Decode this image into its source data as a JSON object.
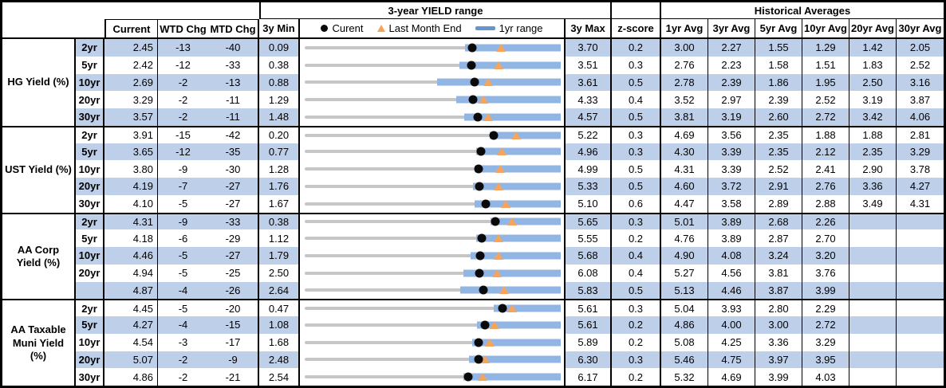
{
  "colors": {
    "stripe": "#BDCFE9",
    "bar": "#92B6E4",
    "dash": "#6595CE",
    "tri": "#F6A35C",
    "track": "#C6C6C6",
    "dot": "#0A0A0A"
  },
  "chart_data": {
    "type": "table",
    "title": "3-year YIELD range",
    "hist_title": "Historical Averages",
    "legend": [
      {
        "icon": "black-dot",
        "label": "Curent"
      },
      {
        "icon": "orange-triangle",
        "label": "Last Month End"
      },
      {
        "icon": "blue-dash",
        "label": "1yr range"
      }
    ],
    "headers": {
      "current": "Current",
      "wtd": "WTD Chg",
      "mtd": "MTD Chg",
      "min": "3y Min",
      "max": "3y Max",
      "z": "z-score",
      "avgs": [
        "1yr Avg",
        "3yr Avg",
        "5yr Avg",
        "10yr Avg",
        "20yr Avg",
        "30yr Avg"
      ]
    },
    "range_chart_note": "bar_lo/dot/tri are fractions of the 3yMin-3yMax track; 1yr-range bar runs from bar_lo to right edge (3y Max)",
    "groups": [
      {
        "label": "HG Yield (%)",
        "rows": [
          {
            "tenor": "2yr",
            "current": "2.45",
            "wtd": "-13",
            "mtd": "-40",
            "min": "0.09",
            "max": "3.70",
            "z": "0.2",
            "avgs": [
              "3.00",
              "2.27",
              "1.55",
              "1.29",
              "1.42",
              "2.05"
            ],
            "range_chart": {
              "bar_lo": 0.627,
              "dot": 0.654,
              "tri": 0.767
            }
          },
          {
            "tenor": "5yr",
            "current": "2.42",
            "wtd": "-12",
            "mtd": "-33",
            "min": "0.38",
            "max": "3.51",
            "z": "0.3",
            "avgs": [
              "2.76",
              "2.23",
              "1.58",
              "1.51",
              "1.83",
              "2.52"
            ],
            "range_chart": {
              "bar_lo": 0.603,
              "dot": 0.652,
              "tri": 0.758
            }
          },
          {
            "tenor": "10yr",
            "current": "2.69",
            "wtd": "-2",
            "mtd": "-13",
            "min": "0.88",
            "max": "3.61",
            "z": "0.5",
            "avgs": [
              "2.78",
              "2.39",
              "1.86",
              "1.95",
              "2.50",
              "3.16"
            ],
            "range_chart": {
              "bar_lo": 0.516,
              "dot": 0.663,
              "tri": 0.716
            }
          },
          {
            "tenor": "20yr",
            "current": "3.29",
            "wtd": "-2",
            "mtd": "-11",
            "min": "1.29",
            "max": "4.33",
            "z": "0.4",
            "avgs": [
              "3.52",
              "2.97",
              "2.39",
              "2.52",
              "3.19",
              "3.87"
            ],
            "range_chart": {
              "bar_lo": 0.591,
              "dot": 0.658,
              "tri": 0.699
            }
          },
          {
            "tenor": "30yr",
            "current": "3.57",
            "wtd": "-2",
            "mtd": "-11",
            "min": "1.48",
            "max": "4.57",
            "z": "0.5",
            "avgs": [
              "3.81",
              "3.19",
              "2.60",
              "2.72",
              "3.42",
              "4.06"
            ],
            "range_chart": {
              "bar_lo": 0.624,
              "dot": 0.676,
              "tri": 0.716
            }
          }
        ]
      },
      {
        "label": "UST Yield (%)",
        "rows": [
          {
            "tenor": "2yr",
            "current": "3.91",
            "wtd": "-15",
            "mtd": "-42",
            "min": "0.20",
            "max": "5.22",
            "z": "0.3",
            "avgs": [
              "4.69",
              "3.56",
              "2.35",
              "1.88",
              "1.88",
              "2.81"
            ],
            "range_chart": {
              "bar_lo": 0.722,
              "dot": 0.739,
              "tri": 0.826
            }
          },
          {
            "tenor": "5yr",
            "current": "3.65",
            "wtd": "-12",
            "mtd": "-35",
            "min": "0.77",
            "max": "4.96",
            "z": "0.3",
            "avgs": [
              "4.30",
              "3.39",
              "2.35",
              "2.12",
              "2.35",
              "3.29"
            ],
            "range_chart": {
              "bar_lo": 0.67,
              "dot": 0.687,
              "tri": 0.771
            }
          },
          {
            "tenor": "10yr",
            "current": "3.80",
            "wtd": "-9",
            "mtd": "-30",
            "min": "1.28",
            "max": "4.99",
            "z": "0.5",
            "avgs": [
              "4.31",
              "3.39",
              "2.52",
              "2.41",
              "2.90",
              "3.78"
            ],
            "range_chart": {
              "bar_lo": 0.665,
              "dot": 0.679,
              "tri": 0.763
            }
          },
          {
            "tenor": "20yr",
            "current": "4.19",
            "wtd": "-7",
            "mtd": "-27",
            "min": "1.76",
            "max": "5.33",
            "z": "0.5",
            "avgs": [
              "4.60",
              "3.72",
              "2.91",
              "2.76",
              "3.36",
              "4.27"
            ],
            "range_chart": {
              "bar_lo": 0.657,
              "dot": 0.681,
              "tri": 0.756
            }
          },
          {
            "tenor": "30yr",
            "current": "4.10",
            "wtd": "-5",
            "mtd": "-27",
            "min": "1.67",
            "max": "5.10",
            "z": "0.6",
            "avgs": [
              "4.47",
              "3.58",
              "2.89",
              "2.88",
              "3.49",
              "4.31"
            ],
            "range_chart": {
              "bar_lo": 0.662,
              "dot": 0.708,
              "tri": 0.786
            }
          }
        ]
      },
      {
        "label": "AA Corp Yield (%)",
        "rows": [
          {
            "tenor": "2yr",
            "current": "4.31",
            "wtd": "-9",
            "mtd": "-33",
            "min": "0.38",
            "max": "5.65",
            "z": "0.3",
            "avgs": [
              "5.01",
              "3.89",
              "2.68",
              "2.26",
              "",
              ""
            ],
            "range_chart": {
              "bar_lo": 0.725,
              "dot": 0.746,
              "tri": 0.81
            }
          },
          {
            "tenor": "5yr",
            "current": "4.18",
            "wtd": "-6",
            "mtd": "-29",
            "min": "1.12",
            "max": "5.55",
            "z": "0.2",
            "avgs": [
              "4.76",
              "3.89",
              "2.87",
              "2.70",
              "",
              ""
            ],
            "range_chart": {
              "bar_lo": 0.67,
              "dot": 0.691,
              "tri": 0.756
            }
          },
          {
            "tenor": "10yr",
            "current": "4.46",
            "wtd": "-5",
            "mtd": "-27",
            "min": "1.79",
            "max": "5.68",
            "z": "0.4",
            "avgs": [
              "4.90",
              "4.08",
              "3.24",
              "3.20",
              "",
              ""
            ],
            "range_chart": {
              "bar_lo": 0.647,
              "dot": 0.686,
              "tri": 0.756
            }
          },
          {
            "tenor": "20yr",
            "current": "4.94",
            "wtd": "-5",
            "mtd": "-25",
            "min": "2.50",
            "max": "6.08",
            "z": "0.4",
            "avgs": [
              "5.27",
              "4.56",
              "3.81",
              "3.76",
              "",
              ""
            ],
            "range_chart": {
              "bar_lo": 0.619,
              "dot": 0.682,
              "tri": 0.75
            }
          },
          {
            "tenor": "",
            "current": "4.87",
            "wtd": "-4",
            "mtd": "-26",
            "min": "2.64",
            "max": "5.83",
            "z": "0.5",
            "avgs": [
              "5.13",
              "4.46",
              "3.87",
              "3.99",
              "",
              ""
            ],
            "range_chart": {
              "bar_lo": 0.607,
              "dot": 0.699,
              "tri": 0.78
            }
          }
        ]
      },
      {
        "label": "AA Taxable Muni Yield (%)",
        "rows": [
          {
            "tenor": "2yr",
            "current": "4.45",
            "wtd": "-5",
            "mtd": "-20",
            "min": "0.47",
            "max": "5.61",
            "z": "0.3",
            "avgs": [
              "5.04",
              "3.93",
              "2.80",
              "2.29",
              "",
              ""
            ],
            "range_chart": {
              "bar_lo": 0.737,
              "dot": 0.774,
              "tri": 0.81
            }
          },
          {
            "tenor": "5yr",
            "current": "4.27",
            "wtd": "-4",
            "mtd": "-15",
            "min": "1.08",
            "max": "5.61",
            "z": "0.2",
            "avgs": [
              "4.86",
              "4.00",
              "3.00",
              "2.72",
              "",
              ""
            ],
            "range_chart": {
              "bar_lo": 0.672,
              "dot": 0.704,
              "tri": 0.74
            }
          },
          {
            "tenor": "10yr",
            "current": "4.54",
            "wtd": "-3",
            "mtd": "-17",
            "min": "1.68",
            "max": "5.89",
            "z": "0.2",
            "avgs": [
              "5.08",
              "4.25",
              "3.36",
              "3.29",
              "",
              ""
            ],
            "range_chart": {
              "bar_lo": 0.653,
              "dot": 0.679,
              "tri": 0.722
            }
          },
          {
            "tenor": "20yr",
            "current": "5.07",
            "wtd": "-2",
            "mtd": "-9",
            "min": "2.48",
            "max": "6.30",
            "z": "0.3",
            "avgs": [
              "5.46",
              "4.75",
              "3.97",
              "3.95",
              "",
              ""
            ],
            "range_chart": {
              "bar_lo": 0.642,
              "dot": 0.678,
              "tri": 0.704
            }
          },
          {
            "tenor": "30yr",
            "current": "4.86",
            "wtd": "-2",
            "mtd": "-21",
            "min": "2.54",
            "max": "6.17",
            "z": "0.2",
            "avgs": [
              "5.32",
              "4.69",
              "3.99",
              "4.03",
              "",
              ""
            ],
            "range_chart": {
              "bar_lo": 0.621,
              "dot": 0.639,
              "tri": 0.696
            }
          }
        ]
      }
    ]
  }
}
